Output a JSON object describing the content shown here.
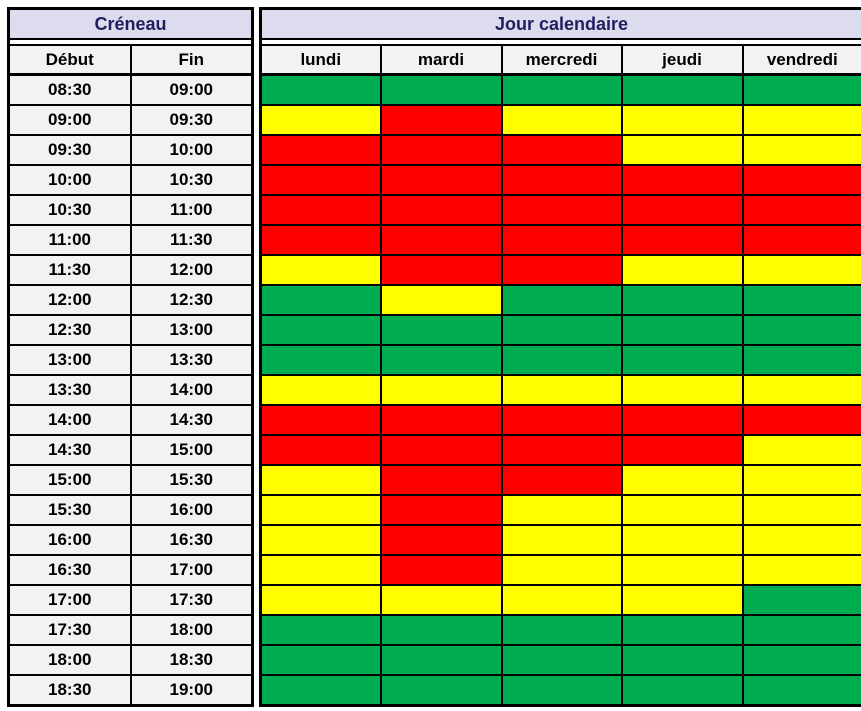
{
  "table": {
    "left_header": "Créneau",
    "right_header": "Jour calendaire",
    "subheaders": {
      "debut": "Début",
      "fin": "Fin"
    },
    "days": [
      "lundi",
      "mardi",
      "mercredi",
      "jeudi",
      "vendredi"
    ],
    "rows": [
      {
        "debut": "08:30",
        "fin": "09:00",
        "statuses": [
          "green",
          "green",
          "green",
          "green",
          "green"
        ]
      },
      {
        "debut": "09:00",
        "fin": "09:30",
        "statuses": [
          "yellow",
          "red",
          "yellow",
          "yellow",
          "yellow"
        ]
      },
      {
        "debut": "09:30",
        "fin": "10:00",
        "statuses": [
          "red",
          "red",
          "red",
          "yellow",
          "yellow"
        ]
      },
      {
        "debut": "10:00",
        "fin": "10:30",
        "statuses": [
          "red",
          "red",
          "red",
          "red",
          "red"
        ]
      },
      {
        "debut": "10:30",
        "fin": "11:00",
        "statuses": [
          "red",
          "red",
          "red",
          "red",
          "red"
        ]
      },
      {
        "debut": "11:00",
        "fin": "11:30",
        "statuses": [
          "red",
          "red",
          "red",
          "red",
          "red"
        ]
      },
      {
        "debut": "11:30",
        "fin": "12:00",
        "statuses": [
          "yellow",
          "red",
          "red",
          "yellow",
          "yellow"
        ]
      },
      {
        "debut": "12:00",
        "fin": "12:30",
        "statuses": [
          "green",
          "yellow",
          "green",
          "green",
          "green"
        ]
      },
      {
        "debut": "12:30",
        "fin": "13:00",
        "statuses": [
          "green",
          "green",
          "green",
          "green",
          "green"
        ]
      },
      {
        "debut": "13:00",
        "fin": "13:30",
        "statuses": [
          "green",
          "green",
          "green",
          "green",
          "green"
        ]
      },
      {
        "debut": "13:30",
        "fin": "14:00",
        "statuses": [
          "yellow",
          "yellow",
          "yellow",
          "yellow",
          "yellow"
        ]
      },
      {
        "debut": "14:00",
        "fin": "14:30",
        "statuses": [
          "red",
          "red",
          "red",
          "red",
          "red"
        ]
      },
      {
        "debut": "14:30",
        "fin": "15:00",
        "statuses": [
          "red",
          "red",
          "red",
          "red",
          "yellow"
        ]
      },
      {
        "debut": "15:00",
        "fin": "15:30",
        "statuses": [
          "yellow",
          "red",
          "red",
          "yellow",
          "yellow"
        ]
      },
      {
        "debut": "15:30",
        "fin": "16:00",
        "statuses": [
          "yellow",
          "red",
          "yellow",
          "yellow",
          "yellow"
        ]
      },
      {
        "debut": "16:00",
        "fin": "16:30",
        "statuses": [
          "yellow",
          "red",
          "yellow",
          "yellow",
          "yellow"
        ]
      },
      {
        "debut": "16:30",
        "fin": "17:00",
        "statuses": [
          "yellow",
          "red",
          "yellow",
          "yellow",
          "yellow"
        ]
      },
      {
        "debut": "17:00",
        "fin": "17:30",
        "statuses": [
          "yellow",
          "yellow",
          "yellow",
          "yellow",
          "green"
        ]
      },
      {
        "debut": "17:30",
        "fin": "18:00",
        "statuses": [
          "green",
          "green",
          "green",
          "green",
          "green"
        ]
      },
      {
        "debut": "18:00",
        "fin": "18:30",
        "statuses": [
          "green",
          "green",
          "green",
          "green",
          "green"
        ]
      },
      {
        "debut": "18:30",
        "fin": "19:00",
        "statuses": [
          "green",
          "green",
          "green",
          "green",
          "green"
        ]
      }
    ]
  },
  "colors": {
    "green": "#00AC50",
    "yellow": "#FFFF00",
    "red": "#FF0000",
    "header_bg": "#DCDCEE",
    "header_text": "#1F1F5F",
    "label_bg": "#F2F2F2",
    "border": "#000000"
  },
  "chart_data": {
    "type": "heatmap",
    "title": "",
    "x_label": "Jour calendaire",
    "y_label": "Créneau",
    "x": [
      "lundi",
      "mardi",
      "mercredi",
      "jeudi",
      "vendredi"
    ],
    "y": [
      "08:30-09:00",
      "09:00-09:30",
      "09:30-10:00",
      "10:00-10:30",
      "10:30-11:00",
      "11:00-11:30",
      "11:30-12:00",
      "12:00-12:30",
      "12:30-13:00",
      "13:00-13:30",
      "13:30-14:00",
      "14:00-14:30",
      "14:30-15:00",
      "15:00-15:30",
      "15:30-16:00",
      "16:00-16:30",
      "16:30-17:00",
      "17:00-17:30",
      "17:30-18:00",
      "18:00-18:30",
      "18:30-19:00"
    ],
    "values": [
      [
        "green",
        "green",
        "green",
        "green",
        "green"
      ],
      [
        "yellow",
        "red",
        "yellow",
        "yellow",
        "yellow"
      ],
      [
        "red",
        "red",
        "red",
        "yellow",
        "yellow"
      ],
      [
        "red",
        "red",
        "red",
        "red",
        "red"
      ],
      [
        "red",
        "red",
        "red",
        "red",
        "red"
      ],
      [
        "red",
        "red",
        "red",
        "red",
        "red"
      ],
      [
        "yellow",
        "red",
        "red",
        "yellow",
        "yellow"
      ],
      [
        "green",
        "yellow",
        "green",
        "green",
        "green"
      ],
      [
        "green",
        "green",
        "green",
        "green",
        "green"
      ],
      [
        "green",
        "green",
        "green",
        "green",
        "green"
      ],
      [
        "yellow",
        "yellow",
        "yellow",
        "yellow",
        "yellow"
      ],
      [
        "red",
        "red",
        "red",
        "red",
        "red"
      ],
      [
        "red",
        "red",
        "red",
        "red",
        "yellow"
      ],
      [
        "yellow",
        "red",
        "red",
        "yellow",
        "yellow"
      ],
      [
        "yellow",
        "red",
        "yellow",
        "yellow",
        "yellow"
      ],
      [
        "yellow",
        "red",
        "yellow",
        "yellow",
        "yellow"
      ],
      [
        "yellow",
        "red",
        "yellow",
        "yellow",
        "yellow"
      ],
      [
        "yellow",
        "yellow",
        "yellow",
        "yellow",
        "green"
      ],
      [
        "green",
        "green",
        "green",
        "green",
        "green"
      ],
      [
        "green",
        "green",
        "green",
        "green",
        "green"
      ],
      [
        "green",
        "green",
        "green",
        "green",
        "green"
      ]
    ],
    "palette": {
      "green": "#00AC50",
      "yellow": "#FFFF00",
      "red": "#FF0000"
    },
    "legend": "none",
    "grid": "on"
  }
}
